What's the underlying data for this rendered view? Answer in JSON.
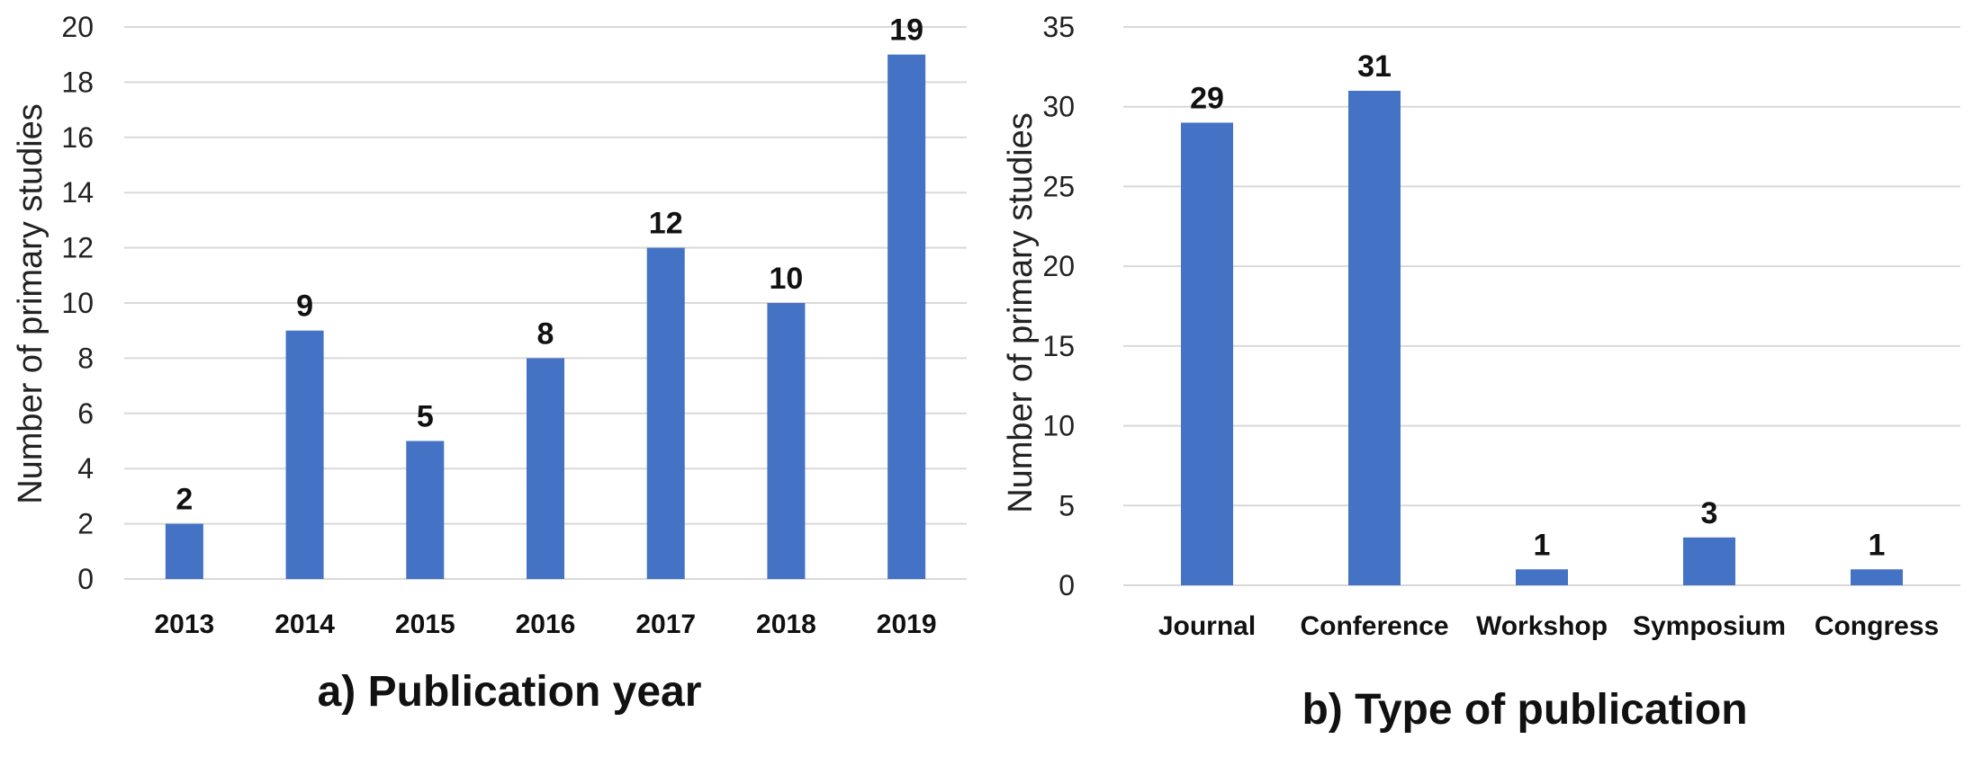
{
  "chart_data": [
    {
      "type": "bar",
      "title": "a) Publication year",
      "xlabel": "",
      "ylabel": "Number of primary studies",
      "categories": [
        "2013",
        "2014",
        "2015",
        "2016",
        "2017",
        "2018",
        "2019"
      ],
      "values": [
        2,
        9,
        5,
        8,
        12,
        10,
        19
      ],
      "ylim": [
        0,
        20
      ],
      "yticks": [
        0,
        2,
        4,
        6,
        8,
        10,
        12,
        14,
        16,
        18,
        20
      ],
      "grid": true,
      "bar_color": "#4472C4"
    },
    {
      "type": "bar",
      "title": "b) Type of publication",
      "xlabel": "",
      "ylabel": "Number of primary studies",
      "categories": [
        "Journal",
        "Conference",
        "Workshop",
        "Symposium",
        "Congress"
      ],
      "values": [
        29,
        31,
        1,
        3,
        1
      ],
      "ylim": [
        0,
        35
      ],
      "yticks": [
        0,
        5,
        10,
        15,
        20,
        25,
        30,
        35
      ],
      "grid": true,
      "bar_color": "#4472C4"
    }
  ]
}
